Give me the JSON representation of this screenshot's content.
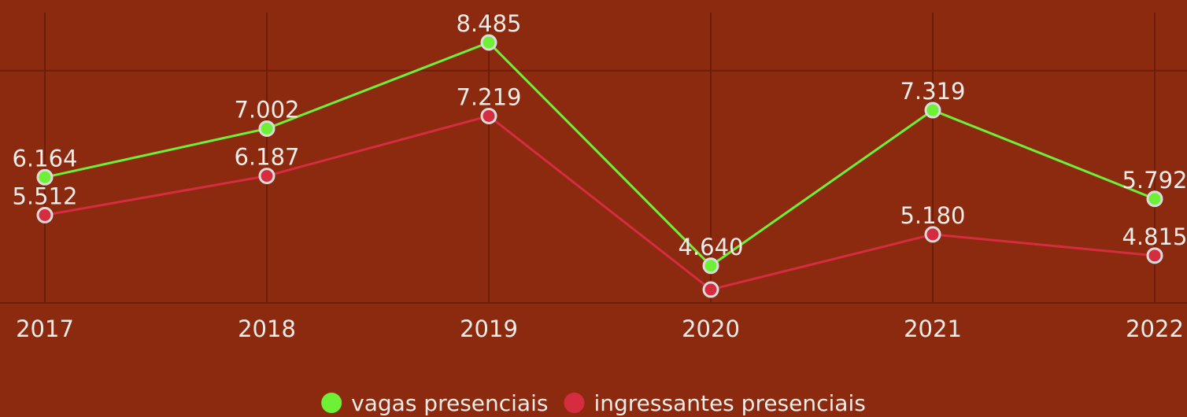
{
  "chart_data": {
    "type": "line",
    "categories": [
      "2017",
      "2018",
      "2019",
      "2020",
      "2021",
      "2022"
    ],
    "series": [
      {
        "name": "vagas presenciais",
        "color": "#6ef037",
        "values": [
          6164,
          7002,
          8485,
          4640,
          7319,
          5792
        ],
        "value_labels": [
          "6.164",
          "7.002",
          "8.485",
          "4.640",
          "7.319",
          "5.792"
        ]
      },
      {
        "name": "ingressantes presenciais",
        "color": "#d62c40",
        "values": [
          5512,
          6187,
          7219,
          4230,
          5180,
          4815
        ],
        "value_labels": [
          "5.512",
          "6.187",
          "7.219",
          null,
          "5.180",
          "4.815"
        ]
      }
    ],
    "ylim": [
      4000,
      9000
    ],
    "yticks": [
      4000,
      8000
    ],
    "grid": true
  }
}
